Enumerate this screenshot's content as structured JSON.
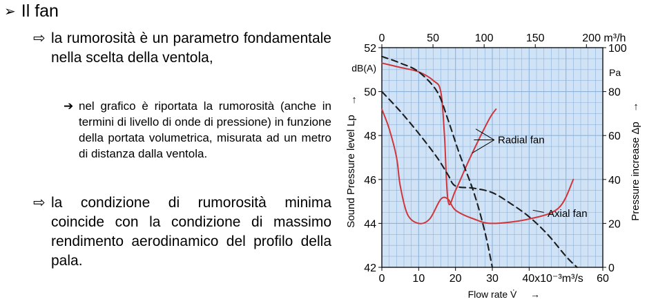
{
  "slide": {
    "title_marker": "➢",
    "title": "Il fan",
    "bullet_marker": "⇨",
    "sub_marker": "➔",
    "bullets": [
      "la rumorosità è un parametro fondamentale nella scelta della ventola,",
      "la condizione di rumorosità minima coincide con la condizione di massimo rendimento aerodinamico del profilo della pala."
    ],
    "sub_bullet": "nel grafico è riportata la rumorosità (anche in termini di livello di onde di pressione) in funzione della portata volumetrica, misurata ad un metro di distanza dalla ventola."
  },
  "chart_data": {
    "type": "line",
    "title": "",
    "xlabel": "Flow rate V̇",
    "xlim": [
      0,
      60
    ],
    "x_ticks": [
      "0",
      "10",
      "20",
      "30",
      "40x10⁻³m³/s",
      "60"
    ],
    "x_ticks_top": [
      "0",
      "50",
      "100",
      "150",
      "200 m³/h"
    ],
    "ylabel_left": "Sound Pressure level Lp",
    "ylabel_left_unit": "dB(A)",
    "ylim_left": [
      42,
      52
    ],
    "y_ticks_left": [
      "42",
      "44",
      "46",
      "48",
      "50",
      "52"
    ],
    "ylabel_right": "Pressure increase Δp",
    "ylabel_right_unit": "Pa",
    "ylim_right": [
      0,
      100
    ],
    "y_ticks_right": [
      "0",
      "20",
      "40",
      "60",
      "80",
      "100"
    ],
    "grid": true,
    "colors": {
      "noise": "#d0353a",
      "pressure": "#1c1c1c",
      "grid": "#8fb2d8",
      "background": "#cfe2f6"
    },
    "annotations": [
      "Radial fan",
      "Axial fan"
    ],
    "series": [
      {
        "group": "Radial fan",
        "quantity": "sound level",
        "axis": "left",
        "x": [
          0,
          5,
          10,
          14,
          16,
          17,
          18,
          20,
          24,
          29,
          31
        ],
        "y": [
          51.3,
          51.1,
          50.9,
          50.5,
          50.0,
          48.0,
          45.0,
          45.5,
          47.0,
          48.7,
          49.2
        ]
      },
      {
        "group": "Radial fan",
        "quantity": "pressure increase",
        "axis": "right",
        "x": [
          0,
          5,
          10,
          15,
          18,
          21,
          25,
          28,
          30
        ],
        "y": [
          96,
          93,
          89,
          80,
          67,
          52,
          34,
          16,
          0
        ]
      },
      {
        "group": "Axial fan",
        "quantity": "sound level",
        "axis": "left",
        "x": [
          0,
          2,
          4,
          5,
          7,
          10,
          13,
          16,
          18,
          20,
          25,
          30,
          40,
          48,
          52
        ],
        "y": [
          49.2,
          48.3,
          47.0,
          45.7,
          44.4,
          44.0,
          44.2,
          45.1,
          45.1,
          44.6,
          44.2,
          44.0,
          44.2,
          44.7,
          46.0
        ]
      },
      {
        "group": "Axial fan",
        "quantity": "pressure increase",
        "axis": "right",
        "x": [
          0,
          5,
          10,
          15,
          18,
          20,
          25,
          30,
          35,
          40,
          45,
          50,
          53
        ],
        "y": [
          80,
          71,
          61,
          50,
          42,
          37,
          36,
          34,
          29,
          23,
          15,
          5,
          0
        ]
      }
    ]
  }
}
